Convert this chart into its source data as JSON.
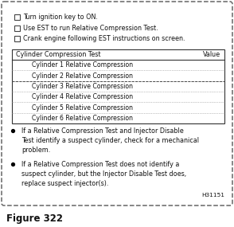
{
  "figure_label": "Figure 322",
  "checkbox_items": [
    "Turn ignition key to ON.",
    "Use EST to run Relative Compression Test.",
    "Crank engine following EST instructions on screen."
  ],
  "table_header_left": "Cylinder Compression Test",
  "table_header_right": "Value",
  "table_rows": [
    "Cylinder 1 Relative Compression",
    "Cylinder 2 Relative Compression",
    "Cylinder 3 Relative Compression",
    "Cylinder 4 Relative Compression",
    "Cylinder 5 Relative Compression",
    "Cylinder 6 Relative Compression"
  ],
  "bullet_items": [
    "If a Relative Compression Test and Injector Disable\nTest identify a suspect cylinder, check for a mechanical\nproblem.",
    "If a Relative Compression Test does not identify a\nsuspect cylinder, but the Injector Disable Test does,\nreplace suspect injector(s)."
  ],
  "figure_id": "H31151",
  "bg_color": "#ffffff",
  "text_color": "#111111",
  "border_color": "#666666",
  "table_border_color": "#333333",
  "row_sep_color": "#888888",
  "font_size": 5.8,
  "label_font_size": 8.5
}
